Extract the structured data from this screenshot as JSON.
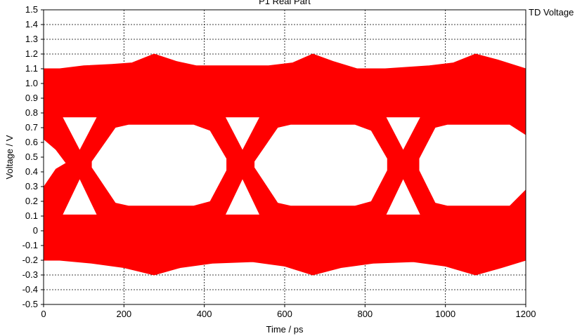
{
  "chart_data": {
    "type": "line",
    "title": "P1 Real Part",
    "legend": [
      "TD Voltage"
    ],
    "legend_placement": "top-right",
    "xlabel": "Time / ps",
    "ylabel": "Voltage / V",
    "xlim": [
      0,
      1200
    ],
    "ylim": [
      -0.5,
      1.5
    ],
    "x_ticks": [
      0,
      200,
      400,
      600,
      800,
      1000,
      1200
    ],
    "y_ticks": [
      -0.5,
      -0.4,
      -0.3,
      -0.2,
      -0.1,
      0,
      0.1,
      0.2,
      0.3,
      0.4,
      0.5,
      0.6,
      0.7,
      0.8,
      0.9,
      1.0,
      1.1,
      1.2,
      1.3,
      1.4,
      1.5
    ],
    "y_tick_labels": [
      "-0.5",
      "-0.4",
      "-0.3",
      "-0.2",
      "-0.1",
      "0",
      "0.1",
      "0.2",
      "0.3",
      "0.4",
      "0.5",
      "0.6",
      "0.7",
      "0.8",
      "0.9",
      "1.0",
      "1.1",
      "1.2",
      "1.3",
      "1.4",
      "1.5"
    ],
    "grid": true,
    "series_color": "#ff0000",
    "eye": {
      "crossing_times": [
        90,
        495,
        895
      ],
      "crossing_level": 0.45,
      "eye_centers": [
        275,
        670,
        1075
      ],
      "low_rail": {
        "outer": -0.21,
        "inner": 0.17
      },
      "high_rail": {
        "outer": 1.11,
        "inner": 0.72
      },
      "overshoot_peak": 1.2,
      "undershoot_peak": -0.3
    }
  }
}
